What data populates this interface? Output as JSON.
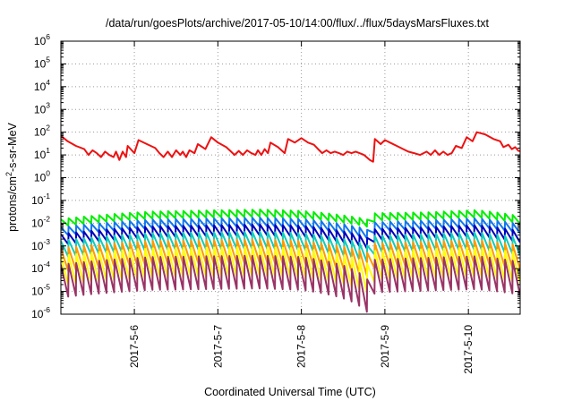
{
  "chart_data": {
    "type": "line",
    "title": "/data/run/goesPlots/archive/2017-05-10/14:00/flux/../flux/5daysMarsFluxes.txt",
    "xlabel": "Coordinated Universal Time (UTC)",
    "ylabel_prefix": "protons/cm",
    "ylabel_sup": "2",
    "ylabel_suffix": "-s-sr-MeV",
    "yscale": "log",
    "ylim": [
      1e-06,
      1000000.0
    ],
    "xlim_days": [
      5.12,
      10.62
    ],
    "grid": true,
    "legend": "none",
    "x_ticks": [
      {
        "day": 6,
        "label": "2017-5-6"
      },
      {
        "day": 7,
        "label": "2017-5-7"
      },
      {
        "day": 8,
        "label": "2017-5-8"
      },
      {
        "day": 9,
        "label": "2017-5-9"
      },
      {
        "day": 10,
        "label": "2017-5-10"
      }
    ],
    "y_ticks": [
      {
        "exp": -6,
        "label": "10",
        "sup": "-6"
      },
      {
        "exp": -5,
        "label": "10",
        "sup": "-5"
      },
      {
        "exp": -4,
        "label": "10",
        "sup": "-4"
      },
      {
        "exp": -3,
        "label": "10",
        "sup": "-3"
      },
      {
        "exp": -2,
        "label": "10",
        "sup": "-2"
      },
      {
        "exp": -1,
        "label": "10",
        "sup": "-1"
      },
      {
        "exp": 0,
        "label": "10",
        "sup": "0"
      },
      {
        "exp": 1,
        "label": "10",
        "sup": "1"
      },
      {
        "exp": 2,
        "label": "10",
        "sup": "2"
      },
      {
        "exp": 3,
        "label": "10",
        "sup": "3"
      },
      {
        "exp": 4,
        "label": "10",
        "sup": "4"
      },
      {
        "exp": 5,
        "label": "10",
        "sup": "5"
      },
      {
        "exp": 6,
        "label": "10",
        "sup": "6"
      }
    ],
    "series": [
      {
        "color": "#ee1111",
        "points": [
          [
            5.12,
            70
          ],
          [
            5.2,
            40
          ],
          [
            5.3,
            25
          ],
          [
            5.4,
            18
          ],
          [
            5.45,
            10
          ],
          [
            5.5,
            16
          ],
          [
            5.55,
            12
          ],
          [
            5.6,
            8
          ],
          [
            5.65,
            14
          ],
          [
            5.7,
            10
          ],
          [
            5.75,
            8
          ],
          [
            5.78,
            14
          ],
          [
            5.82,
            6
          ],
          [
            5.86,
            14
          ],
          [
            5.9,
            8
          ],
          [
            5.92,
            25
          ],
          [
            6.0,
            12
          ],
          [
            6.05,
            45
          ],
          [
            6.15,
            30
          ],
          [
            6.25,
            20
          ],
          [
            6.3,
            12
          ],
          [
            6.35,
            8
          ],
          [
            6.4,
            14
          ],
          [
            6.45,
            8
          ],
          [
            6.5,
            16
          ],
          [
            6.55,
            10
          ],
          [
            6.58,
            14
          ],
          [
            6.62,
            8
          ],
          [
            6.66,
            16
          ],
          [
            6.72,
            12
          ],
          [
            6.76,
            30
          ],
          [
            6.85,
            18
          ],
          [
            6.92,
            60
          ],
          [
            7.0,
            35
          ],
          [
            7.1,
            22
          ],
          [
            7.15,
            15
          ],
          [
            7.2,
            10
          ],
          [
            7.25,
            15
          ],
          [
            7.3,
            10
          ],
          [
            7.35,
            16
          ],
          [
            7.4,
            12
          ],
          [
            7.45,
            10
          ],
          [
            7.48,
            16
          ],
          [
            7.52,
            10
          ],
          [
            7.56,
            18
          ],
          [
            7.6,
            12
          ],
          [
            7.63,
            35
          ],
          [
            7.72,
            22
          ],
          [
            7.8,
            12
          ],
          [
            7.84,
            50
          ],
          [
            7.92,
            35
          ],
          [
            8.0,
            55
          ],
          [
            8.08,
            35
          ],
          [
            8.15,
            28
          ],
          [
            8.2,
            18
          ],
          [
            8.25,
            12
          ],
          [
            8.3,
            16
          ],
          [
            8.35,
            12
          ],
          [
            8.4,
            14
          ],
          [
            8.45,
            12
          ],
          [
            8.5,
            10
          ],
          [
            8.55,
            14
          ],
          [
            8.6,
            12
          ],
          [
            8.65,
            14
          ],
          [
            8.75,
            10
          ],
          [
            8.82,
            6
          ],
          [
            8.86,
            5
          ],
          [
            8.88,
            50
          ],
          [
            8.95,
            30
          ],
          [
            9.0,
            45
          ],
          [
            9.08,
            32
          ],
          [
            9.15,
            24
          ],
          [
            9.22,
            18
          ],
          [
            9.28,
            14
          ],
          [
            9.35,
            12
          ],
          [
            9.42,
            10
          ],
          [
            9.5,
            14
          ],
          [
            9.55,
            10
          ],
          [
            9.6,
            16
          ],
          [
            9.65,
            10
          ],
          [
            9.7,
            14
          ],
          [
            9.75,
            10
          ],
          [
            9.8,
            12
          ],
          [
            9.85,
            25
          ],
          [
            9.92,
            20
          ],
          [
            9.98,
            60
          ],
          [
            10.05,
            40
          ],
          [
            10.1,
            100
          ],
          [
            10.2,
            80
          ],
          [
            10.3,
            50
          ],
          [
            10.38,
            40
          ],
          [
            10.42,
            22
          ],
          [
            10.48,
            28
          ],
          [
            10.52,
            18
          ],
          [
            10.56,
            22
          ],
          [
            10.6,
            15
          ],
          [
            10.62,
            15
          ]
        ]
      },
      {
        "color": "#00ee00",
        "teeth": {
          "start": 5.12,
          "end": 10.62,
          "period": 0.0917,
          "peak": 0.025,
          "trough": 0.012,
          "envelope": [
            [
              5.12,
              0.6
            ],
            [
              6.2,
              1.3
            ],
            [
              7.5,
              1.6
            ],
            [
              8.0,
              1.4
            ],
            [
              8.78,
              0.6
            ],
            [
              8.86,
              0.35
            ],
            [
              8.88,
              1.1
            ],
            [
              9.5,
              1.2
            ],
            [
              10.1,
              1.5
            ],
            [
              10.62,
              0.8
            ]
          ]
        }
      },
      {
        "color": "#1177ee",
        "teeth": {
          "start": 5.12,
          "end": 10.62,
          "period": 0.0917,
          "peak": 0.011,
          "trough": 0.0045,
          "envelope": [
            [
              5.12,
              0.6
            ],
            [
              6.2,
              1.3
            ],
            [
              7.5,
              1.6
            ],
            [
              8.0,
              1.4
            ],
            [
              8.78,
              0.5
            ],
            [
              8.86,
              0.12
            ],
            [
              8.88,
              1.0
            ],
            [
              9.5,
              1.2
            ],
            [
              10.1,
              1.5
            ],
            [
              10.62,
              0.8
            ]
          ]
        }
      },
      {
        "color": "#0000bb",
        "teeth": {
          "start": 5.12,
          "end": 10.62,
          "period": 0.0917,
          "peak": 0.0055,
          "trough": 0.0018,
          "envelope": [
            [
              5.12,
              0.6
            ],
            [
              6.2,
              1.3
            ],
            [
              7.5,
              1.6
            ],
            [
              8.0,
              1.4
            ],
            [
              8.78,
              0.45
            ],
            [
              8.86,
              0.08
            ],
            [
              8.88,
              1.0
            ],
            [
              9.5,
              1.2
            ],
            [
              10.1,
              1.5
            ],
            [
              10.62,
              0.8
            ]
          ]
        }
      },
      {
        "color": "#11ccbb",
        "teeth": {
          "start": 5.12,
          "end": 10.62,
          "period": 0.0917,
          "peak": 0.0028,
          "trough": 0.0005,
          "envelope": [
            [
              5.12,
              0.6
            ],
            [
              6.2,
              1.3
            ],
            [
              7.5,
              1.5
            ],
            [
              8.0,
              1.3
            ],
            [
              8.78,
              0.4
            ],
            [
              8.86,
              0.2
            ],
            [
              8.88,
              1.0
            ],
            [
              9.5,
              1.2
            ],
            [
              10.1,
              1.4
            ],
            [
              10.62,
              0.8
            ]
          ]
        }
      },
      {
        "color": "#ff9900",
        "teeth": {
          "start": 5.12,
          "end": 10.62,
          "period": 0.0917,
          "peak": 0.0013,
          "trough": 0.00012,
          "envelope": [
            [
              5.12,
              0.6
            ],
            [
              6.2,
              1.3
            ],
            [
              7.5,
              1.5
            ],
            [
              8.0,
              1.3
            ],
            [
              8.78,
              0.4
            ],
            [
              8.86,
              0.3
            ],
            [
              8.88,
              1.0
            ],
            [
              9.5,
              1.2
            ],
            [
              10.1,
              1.4
            ],
            [
              10.62,
              0.8
            ]
          ]
        }
      },
      {
        "color": "#ffff00",
        "teeth": {
          "start": 5.12,
          "end": 10.62,
          "period": 0.0917,
          "peak": 0.0006,
          "trough": 3e-05,
          "envelope": [
            [
              5.12,
              0.6
            ],
            [
              6.2,
              1.3
            ],
            [
              7.5,
              1.5
            ],
            [
              8.0,
              1.3
            ],
            [
              8.78,
              0.3
            ],
            [
              8.86,
              0.15
            ],
            [
              8.88,
              1.0
            ],
            [
              9.5,
              1.2
            ],
            [
              10.1,
              1.4
            ],
            [
              10.62,
              0.8
            ]
          ]
        }
      },
      {
        "color": "#993366",
        "teeth": {
          "start": 5.12,
          "end": 10.62,
          "period": 0.0917,
          "peak": 0.00025,
          "trough": 9e-06,
          "envelope": [
            [
              5.12,
              0.6
            ],
            [
              6.2,
              1.3
            ],
            [
              7.5,
              1.5
            ],
            [
              8.0,
              1.3
            ],
            [
              8.7,
              0.25
            ],
            [
              8.8,
              0.12
            ],
            [
              8.85,
              0.14
            ],
            [
              8.88,
              1.0
            ],
            [
              9.5,
              1.2
            ],
            [
              10.1,
              1.4
            ],
            [
              10.62,
              0.8
            ]
          ]
        }
      }
    ]
  }
}
